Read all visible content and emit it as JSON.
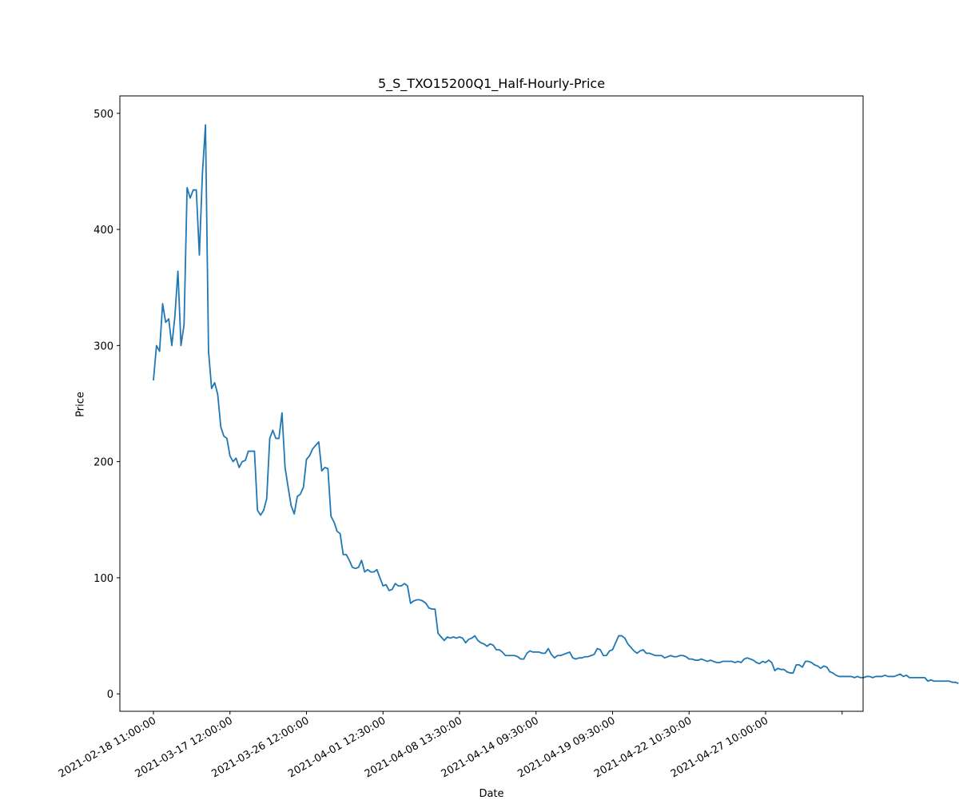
{
  "chart_data": {
    "type": "line",
    "title": "5_S_TXO15200Q1_Half-Hourly-Price",
    "xlabel": "Date",
    "ylabel": "Price",
    "ylim": [
      -15,
      515
    ],
    "yticks": [
      0,
      100,
      200,
      300,
      400,
      500
    ],
    "xtick_labels": [
      "2021-02-18 11:00:00",
      "2021-03-17 12:00:00",
      "2021-03-26 12:00:00",
      "2021-04-01 12:30:00",
      "2021-04-08 13:30:00",
      "2021-04-14 09:30:00",
      "2021-04-19 09:30:00",
      "2021-04-22 10:30:00",
      "2021-04-27 10:00:00",
      ""
    ],
    "xtick_positions": [
      0,
      25,
      50,
      75,
      100,
      125,
      150,
      175,
      200,
      225
    ],
    "grid": false,
    "line_color": "#1f77b4",
    "series": [
      {
        "values": [
          270,
          300,
          295,
          336,
          320,
          323,
          300,
          325,
          364,
          300,
          318,
          436,
          427,
          434,
          434,
          378,
          448,
          490,
          295,
          263,
          268,
          258,
          230,
          222,
          220,
          205,
          200,
          203,
          195,
          200,
          201,
          209,
          209,
          209,
          158,
          154,
          158,
          168,
          220,
          227,
          220,
          220,
          242,
          195,
          178,
          162,
          155,
          170,
          172,
          178,
          202,
          205,
          211,
          214,
          217,
          192,
          195,
          194,
          153,
          148,
          140,
          138,
          120,
          120,
          115,
          109,
          108,
          109,
          115,
          105,
          107,
          105,
          105,
          107,
          100,
          93,
          94,
          89,
          90,
          95,
          93,
          93,
          95,
          93,
          78,
          80,
          81,
          81,
          80,
          78,
          74,
          73,
          73,
          52,
          49,
          46,
          49,
          48,
          49,
          48,
          49,
          48,
          44,
          47,
          48,
          50,
          46,
          44,
          43,
          41,
          43,
          42,
          38,
          38,
          36,
          33,
          33,
          33,
          33,
          32,
          30,
          30,
          35,
          37,
          36,
          36,
          36,
          35,
          35,
          39,
          34,
          31,
          33,
          33,
          34,
          35,
          36,
          31,
          30,
          31,
          31,
          32,
          32,
          33,
          34,
          39,
          38,
          33,
          33,
          37,
          38,
          44,
          50,
          50,
          48,
          43,
          40,
          37,
          35,
          37,
          38,
          35,
          35,
          34,
          33,
          33,
          33,
          31,
          32,
          33,
          32,
          32,
          33,
          33,
          32,
          30,
          30,
          29,
          29,
          30,
          29,
          28,
          29,
          28,
          27,
          27,
          28,
          28,
          28,
          28,
          27,
          28,
          27,
          30,
          31,
          30,
          29,
          27,
          26,
          28,
          27,
          29,
          27,
          20,
          22,
          21,
          21,
          19,
          18,
          18,
          25,
          25,
          23,
          28,
          28,
          27,
          25,
          24,
          22,
          24,
          23,
          19,
          18,
          16,
          15,
          15,
          15,
          15,
          15,
          14,
          15,
          14,
          14,
          15,
          15,
          14,
          15,
          15,
          15,
          16,
          15,
          15,
          15,
          16,
          17,
          15,
          16,
          14,
          14,
          14,
          14,
          14,
          14,
          11,
          12,
          11,
          11,
          11,
          11,
          11,
          11,
          10,
          10,
          9
        ]
      }
    ]
  }
}
